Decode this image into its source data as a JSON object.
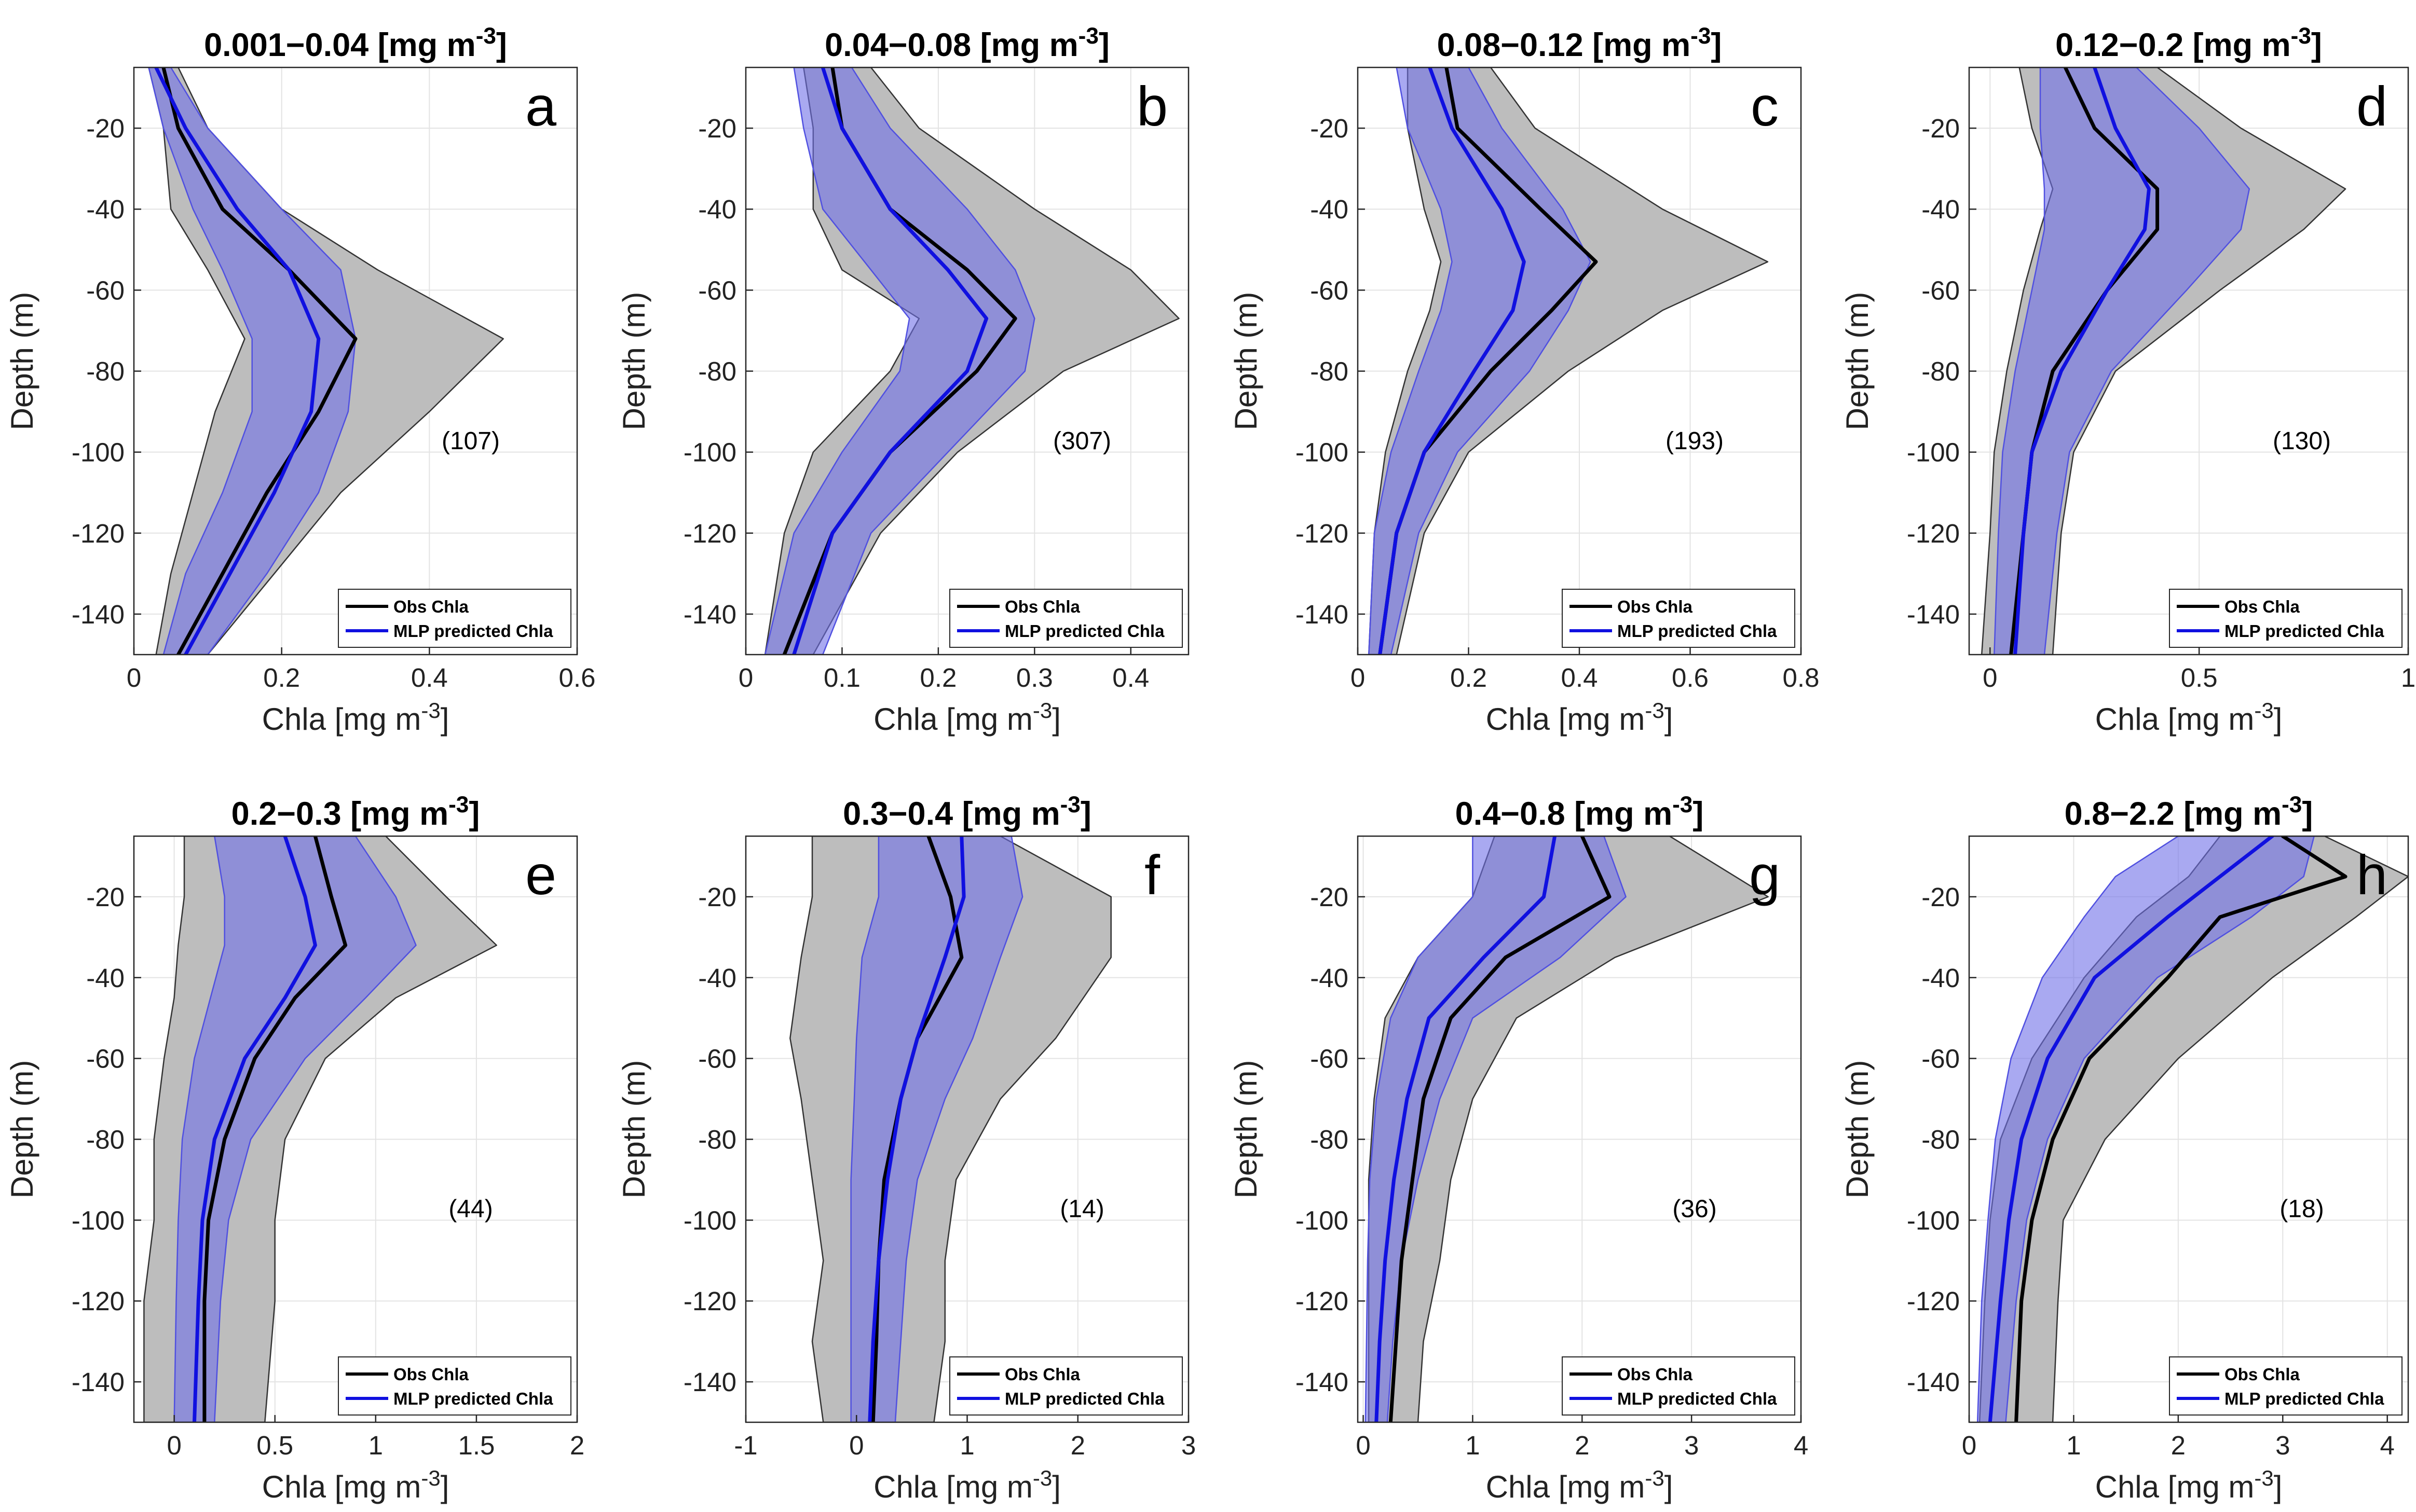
{
  "figure": {
    "depth_ticks": [
      -20,
      -40,
      -60,
      -80,
      -100,
      -120,
      -140
    ],
    "legend": {
      "obs_label": "Obs Chla",
      "mlp_label": "MLP predicted Chla"
    },
    "colors": {
      "obs_line": "#000000",
      "obs_band": "#bdbdbd",
      "mlp_line": "#1010e0",
      "mlp_band": "#7070e8",
      "grid": "#e3e3e3"
    }
  },
  "chart_data": [
    {
      "type": "line",
      "title": "0.001−0.04 [mg m",
      "title_sup": "-3",
      "title_end": "]",
      "letter": "a",
      "count": "(107)",
      "xlabel": "Chla [mg m",
      "xlabel_sup": "-3",
      "xlabel_end": "]",
      "ylabel": "Depth (m)",
      "xlim": [
        0,
        0.6
      ],
      "ylim": [
        -150,
        -5
      ],
      "xticks": [
        0,
        0.2,
        0.4,
        0.6
      ],
      "xtick_labels": [
        "0",
        "0.2",
        "0.4",
        "0.6"
      ],
      "depth": [
        -5,
        -20,
        -40,
        -55,
        -72,
        -90,
        -110,
        -130,
        -150
      ],
      "series": [
        {
          "name": "Obs Chla",
          "values": [
            0.04,
            0.06,
            0.12,
            0.21,
            0.3,
            0.25,
            0.18,
            0.12,
            0.06
          ],
          "lower": [
            0.02,
            0.04,
            0.05,
            0.1,
            0.15,
            0.11,
            0.08,
            0.05,
            0.03
          ],
          "upper": [
            0.06,
            0.1,
            0.2,
            0.33,
            0.5,
            0.4,
            0.28,
            0.19,
            0.1
          ]
        },
        {
          "name": "MLP predicted Chla",
          "values": [
            0.03,
            0.07,
            0.14,
            0.21,
            0.25,
            0.24,
            0.19,
            0.13,
            0.07
          ],
          "lower": [
            0.02,
            0.04,
            0.08,
            0.12,
            0.16,
            0.16,
            0.12,
            0.07,
            0.04
          ],
          "upper": [
            0.05,
            0.1,
            0.2,
            0.28,
            0.3,
            0.29,
            0.25,
            0.18,
            0.1
          ]
        }
      ]
    },
    {
      "type": "line",
      "title": "0.04−0.08 [mg m",
      "title_sup": "-3",
      "title_end": "]",
      "letter": "b",
      "count": "(307)",
      "xlabel": "Chla [mg m",
      "xlabel_sup": "-3",
      "xlabel_end": "]",
      "ylabel": "Depth (m)",
      "xlim": [
        0,
        0.46
      ],
      "ylim": [
        -150,
        -5
      ],
      "xticks": [
        0,
        0.1,
        0.2,
        0.3,
        0.4
      ],
      "xtick_labels": [
        "0",
        "0.1",
        "0.2",
        "0.3",
        "0.4"
      ],
      "depth": [
        -5,
        -20,
        -40,
        -55,
        -67,
        -80,
        -100,
        -120,
        -150
      ],
      "series": [
        {
          "name": "Obs Chla",
          "values": [
            0.09,
            0.1,
            0.15,
            0.23,
            0.28,
            0.24,
            0.15,
            0.09,
            0.04
          ],
          "lower": [
            0.06,
            0.07,
            0.07,
            0.1,
            0.18,
            0.15,
            0.07,
            0.04,
            0.02
          ],
          "upper": [
            0.13,
            0.18,
            0.3,
            0.4,
            0.45,
            0.33,
            0.22,
            0.14,
            0.07
          ]
        },
        {
          "name": "MLP predicted Chla",
          "values": [
            0.08,
            0.1,
            0.15,
            0.21,
            0.25,
            0.23,
            0.15,
            0.09,
            0.05
          ],
          "lower": [
            0.05,
            0.06,
            0.08,
            0.13,
            0.17,
            0.16,
            0.1,
            0.05,
            0.02
          ],
          "upper": [
            0.11,
            0.15,
            0.23,
            0.28,
            0.3,
            0.29,
            0.21,
            0.13,
            0.08
          ]
        }
      ]
    },
    {
      "type": "line",
      "title": "0.08−0.12 [mg m",
      "title_sup": "-3",
      "title_end": "]",
      "letter": "c",
      "count": "(193)",
      "xlabel": "Chla [mg m",
      "xlabel_sup": "-3",
      "xlabel_end": "]",
      "ylabel": "Depth (m)",
      "xlim": [
        0,
        0.8
      ],
      "ylim": [
        -150,
        -5
      ],
      "xticks": [
        0,
        0.2,
        0.4,
        0.6,
        0.8
      ],
      "xtick_labels": [
        "0",
        "0.2",
        "0.4",
        "0.6",
        "0.8"
      ],
      "depth": [
        -5,
        -20,
        -40,
        -53,
        -65,
        -80,
        -100,
        -120,
        -150
      ],
      "series": [
        {
          "name": "Obs Chla",
          "values": [
            0.16,
            0.18,
            0.33,
            0.43,
            0.35,
            0.24,
            0.12,
            0.07,
            0.04
          ],
          "lower": [
            0.09,
            0.09,
            0.12,
            0.15,
            0.13,
            0.09,
            0.05,
            0.03,
            0.02
          ],
          "upper": [
            0.24,
            0.32,
            0.55,
            0.74,
            0.55,
            0.38,
            0.2,
            0.12,
            0.07
          ]
        },
        {
          "name": "MLP predicted Chla",
          "values": [
            0.13,
            0.17,
            0.26,
            0.3,
            0.28,
            0.21,
            0.12,
            0.07,
            0.04
          ],
          "lower": [
            0.07,
            0.09,
            0.15,
            0.17,
            0.15,
            0.11,
            0.06,
            0.03,
            0.02
          ],
          "upper": [
            0.2,
            0.26,
            0.37,
            0.42,
            0.38,
            0.31,
            0.18,
            0.11,
            0.06
          ]
        }
      ]
    },
    {
      "type": "line",
      "title": "0.12−0.2 [mg m",
      "title_sup": "-3",
      "title_end": "]",
      "letter": "d",
      "count": "(130)",
      "xlabel": "Chla [mg m",
      "xlabel_sup": "-3",
      "xlabel_end": "]",
      "ylabel": "Depth (m)",
      "xlim": [
        -0.05,
        1.0
      ],
      "ylim": [
        -150,
        -5
      ],
      "xticks": [
        0,
        0.5,
        1
      ],
      "xtick_labels": [
        "0",
        "0.5",
        "1"
      ],
      "depth": [
        -5,
        -20,
        -35,
        -45,
        -60,
        -80,
        -100,
        -120,
        -150
      ],
      "series": [
        {
          "name": "Obs Chla",
          "values": [
            0.18,
            0.25,
            0.4,
            0.4,
            0.28,
            0.15,
            0.1,
            0.08,
            0.05
          ],
          "lower": [
            0.07,
            0.1,
            0.15,
            0.12,
            0.08,
            0.04,
            0.01,
            0.0,
            -0.02
          ],
          "upper": [
            0.4,
            0.6,
            0.85,
            0.75,
            0.55,
            0.3,
            0.2,
            0.17,
            0.15
          ]
        },
        {
          "name": "MLP predicted Chla",
          "values": [
            0.25,
            0.3,
            0.38,
            0.37,
            0.28,
            0.17,
            0.1,
            0.08,
            0.06
          ],
          "lower": [
            0.12,
            0.12,
            0.13,
            0.13,
            0.1,
            0.06,
            0.03,
            0.02,
            0.01
          ],
          "upper": [
            0.35,
            0.5,
            0.62,
            0.6,
            0.47,
            0.29,
            0.19,
            0.16,
            0.13
          ]
        }
      ]
    },
    {
      "type": "line",
      "title": "0.2−0.3 [mg m",
      "title_sup": "-3",
      "title_end": "]",
      "letter": "e",
      "count": "(44)",
      "xlabel": "Chla [mg m",
      "xlabel_sup": "-3",
      "xlabel_end": "]",
      "ylabel": "Depth (m)",
      "xlim": [
        -0.2,
        2.0
      ],
      "ylim": [
        -150,
        -5
      ],
      "xticks": [
        0,
        0.5,
        1,
        1.5,
        2
      ],
      "xtick_labels": [
        "0",
        "0.5",
        "1",
        "1.5",
        "2"
      ],
      "depth": [
        -5,
        -20,
        -32,
        -45,
        -60,
        -80,
        -100,
        -120,
        -150
      ],
      "series": [
        {
          "name": "Obs Chla",
          "values": [
            0.7,
            0.78,
            0.85,
            0.6,
            0.4,
            0.25,
            0.17,
            0.15,
            0.15
          ],
          "lower": [
            0.05,
            0.05,
            0.02,
            0.0,
            -0.05,
            -0.1,
            -0.1,
            -0.15,
            -0.15
          ],
          "upper": [
            1.05,
            1.35,
            1.6,
            1.1,
            0.75,
            0.55,
            0.5,
            0.5,
            0.45
          ]
        },
        {
          "name": "MLP predicted Chla",
          "values": [
            0.55,
            0.65,
            0.7,
            0.55,
            0.35,
            0.2,
            0.14,
            0.12,
            0.1
          ],
          "lower": [
            0.2,
            0.25,
            0.25,
            0.18,
            0.1,
            0.04,
            0.02,
            0.01,
            0.0
          ],
          "upper": [
            0.9,
            1.1,
            1.2,
            0.95,
            0.65,
            0.38,
            0.27,
            0.23,
            0.2
          ]
        }
      ]
    },
    {
      "type": "line",
      "title": "0.3−0.4 [mg m",
      "title_sup": "-3",
      "title_end": "]",
      "letter": "f",
      "count": "(14)",
      "xlabel": "Chla [mg m",
      "xlabel_sup": "-3",
      "xlabel_end": "]",
      "ylabel": "Depth (m)",
      "xlim": [
        -1,
        3
      ],
      "ylim": [
        -150,
        -5
      ],
      "xticks": [
        -1,
        0,
        1,
        2,
        3
      ],
      "xtick_labels": [
        "-1",
        "0",
        "1",
        "2",
        "3"
      ],
      "depth": [
        -5,
        -20,
        -35,
        -55,
        -70,
        -90,
        -110,
        -130,
        -150
      ],
      "series": [
        {
          "name": "Obs Chla",
          "values": [
            0.65,
            0.85,
            0.95,
            0.55,
            0.4,
            0.25,
            0.2,
            0.18,
            0.15
          ],
          "lower": [
            -0.4,
            -0.4,
            -0.5,
            -0.6,
            -0.5,
            -0.4,
            -0.3,
            -0.4,
            -0.3
          ],
          "upper": [
            1.3,
            2.3,
            2.3,
            1.8,
            1.3,
            0.9,
            0.8,
            0.8,
            0.7
          ]
        },
        {
          "name": "MLP predicted Chla",
          "values": [
            0.95,
            0.97,
            0.8,
            0.55,
            0.4,
            0.28,
            0.2,
            0.15,
            0.12
          ],
          "lower": [
            0.2,
            0.2,
            0.05,
            0.0,
            -0.02,
            -0.05,
            -0.05,
            -0.05,
            -0.05
          ],
          "upper": [
            1.4,
            1.5,
            1.3,
            1.05,
            0.8,
            0.55,
            0.45,
            0.4,
            0.35
          ]
        }
      ]
    },
    {
      "type": "line",
      "title": "0.4−0.8 [mg m",
      "title_sup": "-3",
      "title_end": "]",
      "letter": "g",
      "count": "(36)",
      "xlabel": "Chla [mg m",
      "xlabel_sup": "-3",
      "xlabel_end": "]",
      "ylabel": "Depth (m)",
      "xlim": [
        -0.05,
        4.0
      ],
      "ylim": [
        -150,
        -5
      ],
      "xticks": [
        0,
        1,
        2,
        3,
        4
      ],
      "xtick_labels": [
        "0",
        "1",
        "2",
        "3",
        "4"
      ],
      "depth": [
        -5,
        -20,
        -35,
        -50,
        -70,
        -90,
        -110,
        -130,
        -150
      ],
      "series": [
        {
          "name": "Obs Chla",
          "values": [
            2.0,
            2.25,
            1.3,
            0.8,
            0.55,
            0.45,
            0.35,
            0.3,
            0.25
          ],
          "lower": [
            1.2,
            1.0,
            0.5,
            0.2,
            0.1,
            0.05,
            0.05,
            0.05,
            0.05
          ],
          "upper": [
            2.8,
            3.7,
            2.3,
            1.4,
            1.0,
            0.8,
            0.7,
            0.55,
            0.5
          ]
        },
        {
          "name": "MLP predicted Chla",
          "values": [
            1.75,
            1.65,
            1.1,
            0.6,
            0.4,
            0.28,
            0.2,
            0.15,
            0.12
          ],
          "lower": [
            1.0,
            1.0,
            0.5,
            0.25,
            0.12,
            0.06,
            0.04,
            0.03,
            0.02
          ],
          "upper": [
            2.2,
            2.4,
            1.8,
            1.0,
            0.7,
            0.5,
            0.35,
            0.27,
            0.22
          ]
        }
      ]
    },
    {
      "type": "line",
      "title": "0.8−2.2 [mg m",
      "title_sup": "-3",
      "title_end": "]",
      "letter": "h",
      "count": "(18)",
      "xlabel": "Chla [mg m",
      "xlabel_sup": "-3",
      "xlabel_end": "]",
      "ylabel": "Depth (m)",
      "xlim": [
        0,
        4.2
      ],
      "ylim": [
        -150,
        -5
      ],
      "xticks": [
        0,
        1,
        2,
        3,
        4
      ],
      "xtick_labels": [
        "0",
        "1",
        "2",
        "3",
        "4"
      ],
      "depth": [
        -5,
        -15,
        -25,
        -40,
        -60,
        -80,
        -100,
        -120,
        -150
      ],
      "series": [
        {
          "name": "Obs Chla",
          "values": [
            3.0,
            3.6,
            2.4,
            1.9,
            1.15,
            0.8,
            0.6,
            0.5,
            0.45
          ],
          "lower": [
            2.4,
            2.1,
            1.6,
            1.1,
            0.6,
            0.3,
            0.2,
            0.15,
            0.1
          ],
          "upper": [
            3.4,
            4.2,
            3.7,
            2.9,
            2.0,
            1.3,
            0.9,
            0.85,
            0.8
          ]
        },
        {
          "name": "MLP predicted Chla",
          "values": [
            2.9,
            2.4,
            1.9,
            1.2,
            0.75,
            0.5,
            0.38,
            0.3,
            0.2
          ],
          "lower": [
            2.0,
            1.4,
            1.1,
            0.7,
            0.4,
            0.25,
            0.18,
            0.12,
            0.08
          ],
          "upper": [
            3.3,
            3.2,
            2.7,
            1.8,
            1.1,
            0.75,
            0.55,
            0.45,
            0.35
          ]
        }
      ]
    }
  ]
}
